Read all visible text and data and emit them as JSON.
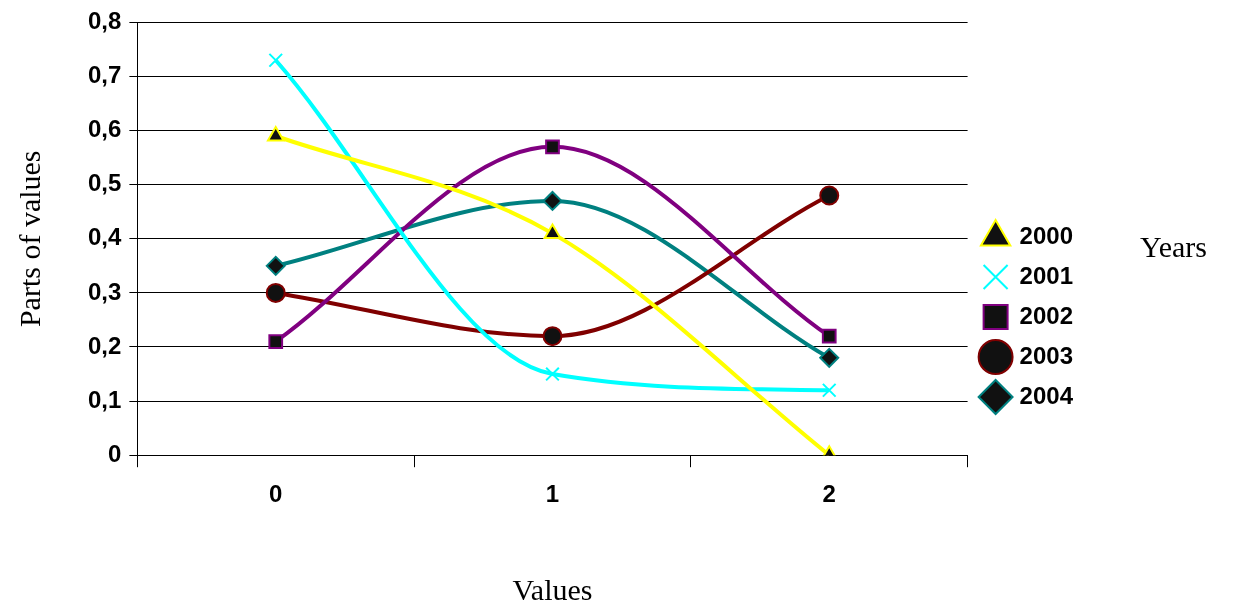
{
  "chart_data": {
    "type": "line",
    "xlabel": "Values",
    "ylabel": "Parts of values",
    "legend_title": "Years",
    "categories": [
      "0",
      "1",
      "2"
    ],
    "series": [
      {
        "name": "2000",
        "color": "#ffff00",
        "marker": "triangle",
        "values": [
          0.59,
          0.41,
          0
        ]
      },
      {
        "name": "2001",
        "color": "#00ffff",
        "marker": "cross",
        "values": [
          0.73,
          0.15,
          0.12
        ]
      },
      {
        "name": "2002",
        "color": "#800080",
        "marker": "square",
        "values": [
          0.21,
          0.57,
          0.22
        ]
      },
      {
        "name": "2003",
        "color": "#800000",
        "marker": "circle",
        "values": [
          0.3,
          0.22,
          0.48
        ]
      },
      {
        "name": "2004",
        "color": "#008080",
        "marker": "diamond",
        "values": [
          0.35,
          0.47,
          0.18
        ]
      }
    ],
    "ylim": [
      0,
      0.8
    ],
    "yticks": [
      0,
      {
        "value": 0.1,
        "label": "0,1"
      },
      {
        "value": 0.2,
        "label": "0,2"
      },
      {
        "value": 0.3,
        "label": "0,3"
      },
      {
        "value": 0.4,
        "label": "0,4"
      },
      {
        "value": 0.5,
        "label": "0,5"
      },
      {
        "value": 0.6,
        "label": "0,6"
      },
      {
        "value": 0.7,
        "label": "0,7"
      },
      {
        "value": 0.8,
        "label": "0,8"
      }
    ],
    "grid": "y",
    "legend": "right",
    "line_style": "solid"
  }
}
